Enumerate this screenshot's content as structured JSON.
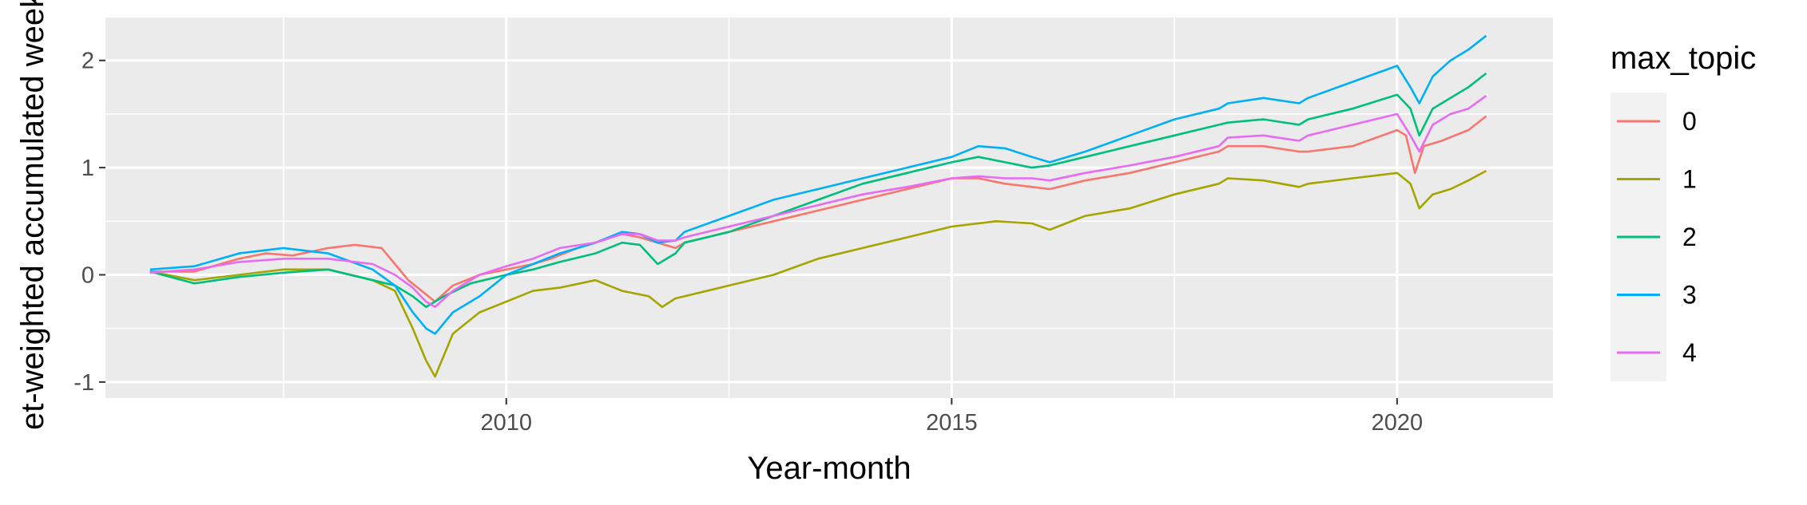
{
  "chart_data": {
    "type": "line",
    "title": "",
    "xlabel": "Year-month",
    "ylabel": "et-weighted accumulated weekl",
    "xlim": [
      2005.5,
      2021.75
    ],
    "ylim": [
      -1.15,
      2.4
    ],
    "x_ticks": [
      2010,
      2015,
      2020
    ],
    "x_tick_labels": [
      "2010",
      "2015",
      "2020"
    ],
    "y_ticks": [
      -1,
      0,
      1,
      2
    ],
    "y_tick_labels": [
      "-1",
      "0",
      "1",
      "2"
    ],
    "grid": true,
    "legend": {
      "title": "max_topic",
      "position": "right"
    },
    "series": [
      {
        "name": "0",
        "color": "#F8766D",
        "x": [
          2006.0,
          2006.5,
          2007.0,
          2007.3,
          2007.6,
          2008.0,
          2008.3,
          2008.6,
          2008.75,
          2008.9,
          2009.05,
          2009.2,
          2009.4,
          2009.7,
          2010.0,
          2010.3,
          2010.5,
          2010.8,
          2011.0,
          2011.3,
          2011.5,
          2011.7,
          2011.9,
          2012.0,
          2012.5,
          2013.0,
          2013.5,
          2014.0,
          2014.5,
          2015.0,
          2015.3,
          2015.6,
          2015.9,
          2016.1,
          2016.5,
          2017.0,
          2017.5,
          2018.0,
          2018.1,
          2018.5,
          2018.9,
          2019.0,
          2019.5,
          2020.0,
          2020.1,
          2020.2,
          2020.3,
          2020.5,
          2020.8,
          2021.0
        ],
        "y": [
          0.03,
          0.03,
          0.15,
          0.2,
          0.18,
          0.25,
          0.28,
          0.25,
          0.1,
          -0.05,
          -0.15,
          -0.25,
          -0.1,
          0.0,
          0.05,
          0.1,
          0.15,
          0.25,
          0.3,
          0.38,
          0.35,
          0.3,
          0.25,
          0.3,
          0.4,
          0.5,
          0.6,
          0.7,
          0.8,
          0.9,
          0.9,
          0.85,
          0.82,
          0.8,
          0.88,
          0.95,
          1.05,
          1.15,
          1.2,
          1.2,
          1.15,
          1.15,
          1.2,
          1.35,
          1.3,
          0.95,
          1.2,
          1.25,
          1.35,
          1.48
        ]
      },
      {
        "name": "1",
        "color": "#A3A500",
        "x": [
          2006.0,
          2006.5,
          2007.0,
          2007.5,
          2008.0,
          2008.5,
          2008.75,
          2008.95,
          2009.1,
          2009.2,
          2009.4,
          2009.7,
          2010.0,
          2010.3,
          2010.6,
          2011.0,
          2011.3,
          2011.6,
          2011.75,
          2011.9,
          2012.0,
          2012.5,
          2013.0,
          2013.5,
          2014.0,
          2014.5,
          2015.0,
          2015.5,
          2015.9,
          2016.1,
          2016.5,
          2017.0,
          2017.5,
          2018.0,
          2018.1,
          2018.5,
          2018.9,
          2019.0,
          2019.5,
          2020.0,
          2020.15,
          2020.25,
          2020.4,
          2020.6,
          2020.8,
          2021.0
        ],
        "y": [
          0.03,
          -0.05,
          0.0,
          0.05,
          0.05,
          -0.05,
          -0.15,
          -0.5,
          -0.8,
          -0.95,
          -0.55,
          -0.35,
          -0.25,
          -0.15,
          -0.12,
          -0.05,
          -0.15,
          -0.2,
          -0.3,
          -0.22,
          -0.2,
          -0.1,
          0.0,
          0.15,
          0.25,
          0.35,
          0.45,
          0.5,
          0.48,
          0.42,
          0.55,
          0.62,
          0.75,
          0.85,
          0.9,
          0.88,
          0.82,
          0.85,
          0.9,
          0.95,
          0.85,
          0.62,
          0.75,
          0.8,
          0.88,
          0.97
        ]
      },
      {
        "name": "2",
        "color": "#00BF7D",
        "x": [
          2006.0,
          2006.5,
          2007.0,
          2007.5,
          2008.0,
          2008.5,
          2008.75,
          2008.95,
          2009.1,
          2009.3,
          2009.6,
          2010.0,
          2010.3,
          2010.6,
          2011.0,
          2011.3,
          2011.5,
          2011.7,
          2011.9,
          2012.0,
          2012.5,
          2013.0,
          2013.5,
          2014.0,
          2014.5,
          2015.0,
          2015.3,
          2015.6,
          2015.9,
          2016.1,
          2016.5,
          2017.0,
          2017.5,
          2018.0,
          2018.1,
          2018.5,
          2018.9,
          2019.0,
          2019.5,
          2020.0,
          2020.15,
          2020.25,
          2020.4,
          2020.6,
          2020.8,
          2021.0
        ],
        "y": [
          0.03,
          -0.08,
          -0.02,
          0.02,
          0.05,
          -0.05,
          -0.1,
          -0.2,
          -0.3,
          -0.2,
          -0.08,
          0.0,
          0.05,
          0.12,
          0.2,
          0.3,
          0.28,
          0.1,
          0.2,
          0.3,
          0.4,
          0.55,
          0.7,
          0.85,
          0.95,
          1.05,
          1.1,
          1.05,
          1.0,
          1.02,
          1.1,
          1.2,
          1.3,
          1.4,
          1.42,
          1.45,
          1.4,
          1.45,
          1.55,
          1.68,
          1.55,
          1.3,
          1.55,
          1.65,
          1.75,
          1.88
        ]
      },
      {
        "name": "3",
        "color": "#00B0F6",
        "x": [
          2006.0,
          2006.5,
          2007.0,
          2007.5,
          2008.0,
          2008.5,
          2008.75,
          2008.95,
          2009.1,
          2009.2,
          2009.4,
          2009.7,
          2010.0,
          2010.3,
          2010.6,
          2011.0,
          2011.3,
          2011.5,
          2011.7,
          2011.9,
          2012.0,
          2012.5,
          2013.0,
          2013.5,
          2014.0,
          2014.5,
          2015.0,
          2015.3,
          2015.6,
          2015.9,
          2016.1,
          2016.5,
          2017.0,
          2017.5,
          2018.0,
          2018.1,
          2018.5,
          2018.9,
          2019.0,
          2019.5,
          2020.0,
          2020.15,
          2020.25,
          2020.4,
          2020.6,
          2020.8,
          2021.0
        ],
        "y": [
          0.05,
          0.08,
          0.2,
          0.25,
          0.2,
          0.05,
          -0.1,
          -0.35,
          -0.5,
          -0.55,
          -0.35,
          -0.2,
          0.0,
          0.1,
          0.2,
          0.3,
          0.4,
          0.38,
          0.3,
          0.32,
          0.4,
          0.55,
          0.7,
          0.8,
          0.9,
          1.0,
          1.1,
          1.2,
          1.18,
          1.1,
          1.05,
          1.15,
          1.3,
          1.45,
          1.55,
          1.6,
          1.65,
          1.6,
          1.65,
          1.8,
          1.95,
          1.75,
          1.6,
          1.85,
          2.0,
          2.1,
          2.23
        ]
      },
      {
        "name": "4",
        "color": "#E76BF3",
        "x": [
          2006.0,
          2006.5,
          2007.0,
          2007.5,
          2008.0,
          2008.5,
          2008.75,
          2008.95,
          2009.1,
          2009.2,
          2009.4,
          2009.7,
          2010.0,
          2010.3,
          2010.6,
          2011.0,
          2011.3,
          2011.5,
          2011.7,
          2011.9,
          2012.0,
          2012.5,
          2013.0,
          2013.5,
          2014.0,
          2014.5,
          2015.0,
          2015.3,
          2015.6,
          2015.9,
          2016.1,
          2016.5,
          2017.0,
          2017.5,
          2018.0,
          2018.1,
          2018.5,
          2018.9,
          2019.0,
          2019.5,
          2020.0,
          2020.15,
          2020.25,
          2020.4,
          2020.6,
          2020.8,
          2021.0
        ],
        "y": [
          0.02,
          0.05,
          0.12,
          0.15,
          0.15,
          0.1,
          0.0,
          -0.12,
          -0.25,
          -0.3,
          -0.15,
          0.0,
          0.08,
          0.15,
          0.25,
          0.3,
          0.38,
          0.38,
          0.32,
          0.32,
          0.35,
          0.45,
          0.55,
          0.65,
          0.75,
          0.82,
          0.9,
          0.92,
          0.9,
          0.9,
          0.88,
          0.95,
          1.02,
          1.1,
          1.2,
          1.28,
          1.3,
          1.25,
          1.3,
          1.4,
          1.5,
          1.3,
          1.15,
          1.4,
          1.5,
          1.55,
          1.67
        ]
      }
    ]
  }
}
